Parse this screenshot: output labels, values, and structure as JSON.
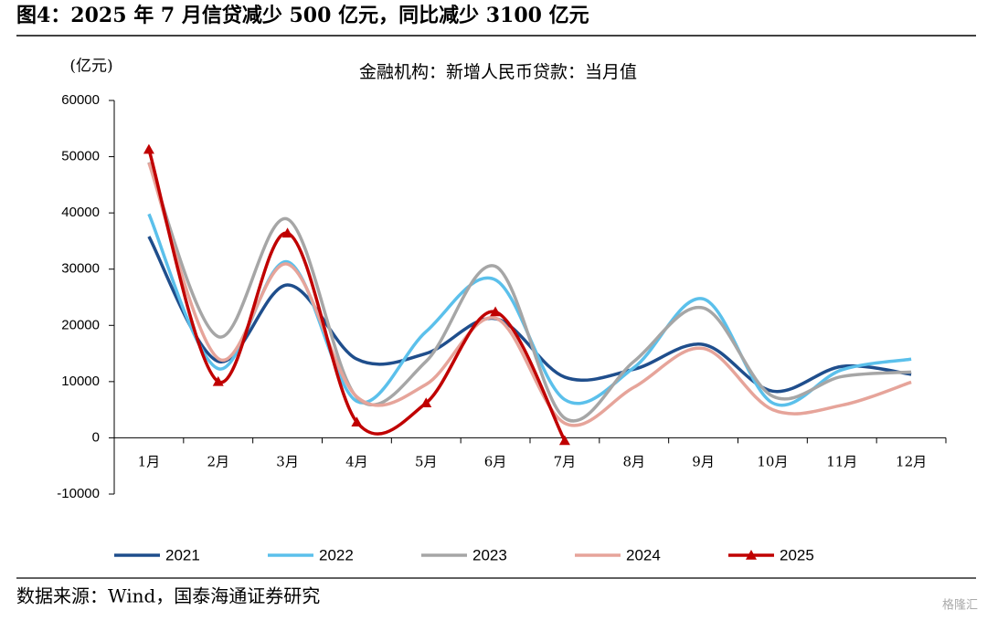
{
  "header": {
    "title": "图4：2025 年 7 月信贷减少 500 亿元，同比减少 3100 亿元"
  },
  "chart_data": {
    "type": "line",
    "title": "金融机构：新增人民币贷款：当月值",
    "ylabel": "(亿元)",
    "categories": [
      "1月",
      "2月",
      "3月",
      "4月",
      "5月",
      "6月",
      "7月",
      "8月",
      "9月",
      "10月",
      "11月",
      "12月"
    ],
    "ylim": [
      -10000,
      60000
    ],
    "yticks": [
      -10000,
      0,
      10000,
      20000,
      30000,
      40000,
      50000,
      60000
    ],
    "legend": "bottom",
    "series": [
      {
        "name": "2021",
        "color": "#1f4e8c",
        "values": [
          35800,
          13600,
          27200,
          14000,
          15000,
          21200,
          10800,
          12200,
          16600,
          8300,
          12700,
          11300
        ]
      },
      {
        "name": "2022",
        "color": "#5bc0eb",
        "values": [
          39800,
          12300,
          31300,
          6500,
          18900,
          28100,
          6800,
          12500,
          24700,
          6200,
          12100,
          14000
        ]
      },
      {
        "name": "2023",
        "color": "#a6a6a6",
        "values": [
          49000,
          18000,
          38900,
          7200,
          13600,
          30500,
          3500,
          13600,
          23100,
          7400,
          10900,
          11700
        ]
      },
      {
        "name": "2024",
        "color": "#e6a49a",
        "values": [
          48900,
          14100,
          30900,
          7300,
          9500,
          21300,
          2600,
          9000,
          15900,
          5000,
          5800,
          9900
        ]
      },
      {
        "name": "2025",
        "color": "#c00000",
        "marker": "triangle",
        "values": [
          51300,
          10000,
          36400,
          2800,
          6200,
          22400,
          -500,
          null,
          null,
          null,
          null,
          null
        ]
      }
    ]
  },
  "footer": {
    "source": "数据来源：Wind，国泰海通证券研究",
    "watermark": "格隆汇"
  }
}
